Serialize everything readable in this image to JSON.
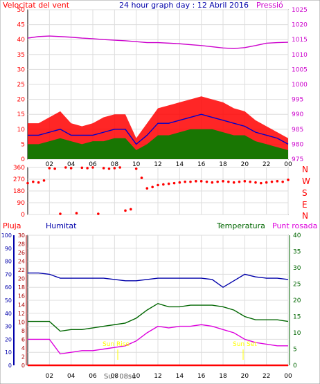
{
  "header": {
    "wind_title": "Velocitat del vent",
    "graph_title": "24 hour graph day : 12 Abril 2016",
    "pressure_title": "Pressió"
  },
  "lower_header": {
    "rain": "Pluja",
    "humidity": "Humitat",
    "temperature": "Temperatura",
    "dewpoint": "Punt rosada"
  },
  "direction_labels": [
    "N",
    "W",
    "S",
    "E",
    "N"
  ],
  "sun_labels": {
    "sunrise": "Sun Rise",
    "sunset": "Sun Set",
    "day": "Sun 08se"
  },
  "colors": {
    "wind_gust": "#ff0000",
    "wind_speed": "#0000cc",
    "wind_min": "#008000",
    "pressure": "#cc00cc",
    "rain": "#ff0000",
    "humidity": "#0000aa",
    "temperature": "#006600",
    "dewpoint": "#dd00dd",
    "title": "#0000aa",
    "sun": "#ffff00"
  },
  "chart_data": [
    {
      "type": "line",
      "name": "wind-pressure",
      "x_ticks": [
        "02",
        "04",
        "06",
        "08",
        "10",
        "12",
        "14",
        "16",
        "18",
        "20",
        "22",
        "00"
      ],
      "y_left_ticks": [
        "0",
        "5",
        "10",
        "15",
        "20",
        "25",
        "30",
        "35",
        "40",
        "45",
        "50"
      ],
      "y_right_ticks": [
        "975",
        "980",
        "985",
        "990",
        "995",
        "1000",
        "1005",
        "1010",
        "1015",
        "1020",
        "1025"
      ],
      "ylim_left": [
        0,
        50
      ],
      "ylim_right": [
        975,
        1025
      ],
      "hours": [
        0,
        1,
        2,
        3,
        4,
        5,
        6,
        7,
        8,
        9,
        10,
        11,
        12,
        13,
        14,
        15,
        16,
        17,
        18,
        19,
        20,
        21,
        22,
        23,
        24
      ],
      "series": [
        {
          "name": "Velocitat del vent",
          "values": [
            12,
            12,
            14,
            16,
            12,
            11,
            12,
            14,
            15,
            15,
            7,
            12,
            17,
            18,
            19,
            20,
            21,
            20,
            19,
            17,
            16,
            13,
            11,
            9,
            7
          ]
        },
        {
          "name": "wind avg",
          "values": [
            8,
            8,
            9,
            10,
            8,
            8,
            8,
            9,
            10,
            10,
            5,
            8,
            12,
            12,
            13,
            14,
            15,
            14,
            13,
            12,
            11,
            9,
            8,
            7,
            5
          ]
        },
        {
          "name": "wind min",
          "values": [
            5,
            5,
            6,
            7,
            6,
            5,
            6,
            6,
            7,
            7,
            3,
            5,
            8,
            8,
            9,
            10,
            10,
            10,
            9,
            8,
            8,
            6,
            5,
            4,
            3
          ]
        },
        {
          "name": "Pressió",
          "values": [
            1015.5,
            1016,
            1016.2,
            1016,
            1015.8,
            1015.5,
            1015.3,
            1015,
            1014.8,
            1014.6,
            1014.3,
            1014,
            1014,
            1013.8,
            1013.6,
            1013.3,
            1013,
            1012.6,
            1012.2,
            1012,
            1012.3,
            1013,
            1013.8,
            1014,
            1014.1
          ]
        }
      ]
    },
    {
      "type": "scatter",
      "name": "wind-direction",
      "x_ticks": [
        "02",
        "04",
        "06",
        "08",
        "10",
        "12",
        "14",
        "16",
        "18",
        "20",
        "22",
        "00"
      ],
      "y_ticks": [
        "360",
        "270",
        "180",
        "90",
        "0"
      ],
      "ylim": [
        0,
        360
      ],
      "hours": [
        0,
        0.5,
        1,
        1.5,
        2,
        2.5,
        3,
        3.5,
        4,
        4.5,
        5,
        5.5,
        6,
        6.5,
        7,
        7.5,
        8,
        8.5,
        9,
        9.5,
        10,
        10.5,
        11,
        11.5,
        12,
        12.5,
        13,
        13.5,
        14,
        14.5,
        15,
        15.5,
        16,
        16.5,
        17,
        17.5,
        18,
        18.5,
        19,
        19.5,
        20,
        20.5,
        21,
        21.5,
        22,
        22.5,
        23,
        23.5,
        24
      ],
      "values": [
        240,
        250,
        245,
        260,
        355,
        350,
        5,
        360,
        355,
        10,
        358,
        355,
        360,
        5,
        355,
        350,
        355,
        360,
        30,
        40,
        350,
        280,
        200,
        210,
        225,
        230,
        235,
        240,
        245,
        250,
        250,
        255,
        255,
        250,
        245,
        250,
        255,
        250,
        245,
        250,
        255,
        250,
        245,
        240,
        245,
        250,
        255,
        250,
        265
      ]
    },
    {
      "type": "line",
      "name": "humidity-temperature",
      "x_ticks": [
        "02",
        "04",
        "06",
        "08",
        "10",
        "12",
        "14",
        "16",
        "18",
        "20",
        "22",
        "00"
      ],
      "y_humidity_ticks": [
        "0",
        "10",
        "20",
        "30",
        "40",
        "50",
        "60",
        "70",
        "80",
        "90",
        "100"
      ],
      "y_rain_ticks": [
        "0",
        "2",
        "4",
        "6",
        "8",
        "10",
        "12",
        "14",
        "16",
        "18",
        "20",
        "22",
        "24",
        "26",
        "28",
        "30"
      ],
      "y_temp_ticks": [
        "0",
        "5",
        "10",
        "15",
        "20",
        "25",
        "30",
        "35",
        "40"
      ],
      "humidity_ylim": [
        0,
        100
      ],
      "temperature_ylim": [
        0,
        40
      ],
      "hours": [
        0,
        1,
        2,
        3,
        4,
        5,
        6,
        7,
        8,
        9,
        10,
        11,
        12,
        13,
        14,
        15,
        16,
        17,
        18,
        19,
        20,
        21,
        22,
        23,
        24
      ],
      "series": [
        {
          "name": "Humitat",
          "values": [
            71,
            71,
            70,
            67,
            67,
            67,
            67,
            67,
            66,
            65,
            65,
            66,
            67,
            67,
            67,
            67,
            67,
            66,
            60,
            65,
            70,
            68,
            67,
            67,
            66
          ]
        },
        {
          "name": "Temperatura",
          "values": [
            13.5,
            13.5,
            13.5,
            10.5,
            11,
            11,
            11.5,
            12,
            12.5,
            13,
            14.5,
            17,
            19,
            18,
            18,
            18.5,
            18.5,
            18.5,
            18,
            17,
            15,
            14,
            14,
            14,
            13.5
          ]
        },
        {
          "name": "Punt rosada",
          "values": [
            8,
            8,
            8,
            3.5,
            4,
            4.5,
            4.5,
            5,
            5.5,
            6,
            7.5,
            10,
            12,
            11.5,
            12,
            12,
            12.5,
            12,
            11,
            10,
            8,
            7,
            6.5,
            6,
            6
          ]
        },
        {
          "name": "Pluja",
          "values": [
            0,
            0,
            0,
            0,
            0,
            0,
            0,
            0,
            0,
            0,
            0,
            0,
            0,
            0,
            0,
            0,
            0,
            0,
            0,
            0,
            0,
            0,
            0,
            0,
            0
          ]
        }
      ]
    }
  ]
}
